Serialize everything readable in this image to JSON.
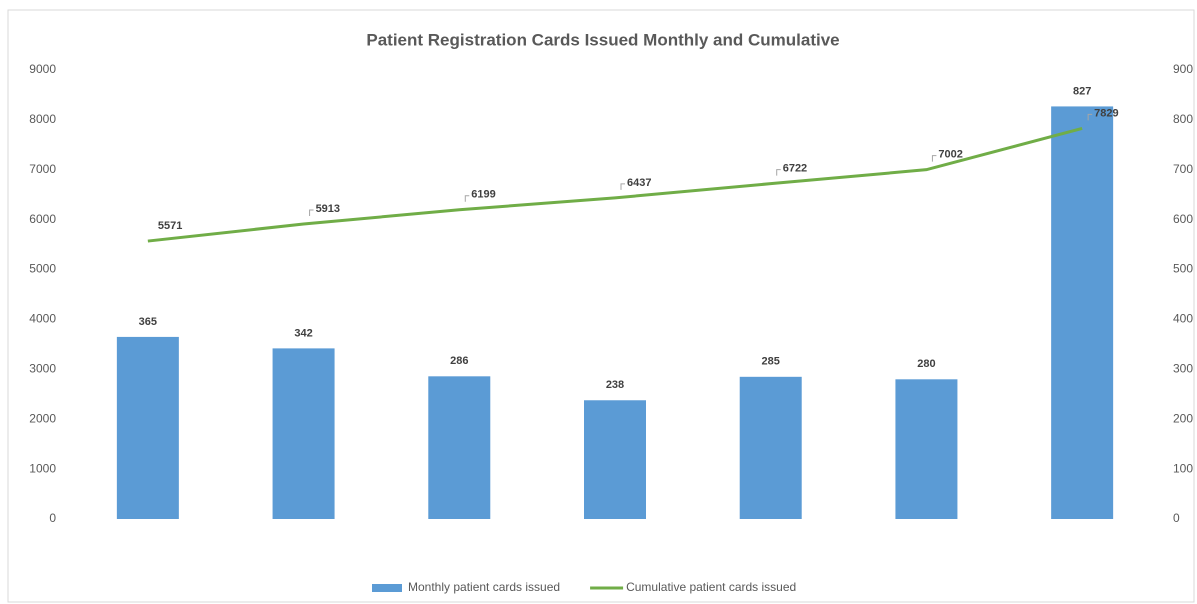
{
  "chart_data": {
    "type": "combo",
    "title": "Patient Registration Cards Issued Monthly and Cumulative",
    "categories": [
      null,
      null,
      null,
      null,
      null,
      null,
      null
    ],
    "series": [
      {
        "name": "Monthly patient cards issued",
        "type": "bar",
        "color": "#5b9bd5",
        "axis": "y2",
        "values": [
          365,
          342,
          286,
          238,
          285,
          280,
          827
        ]
      },
      {
        "name": "Cumulative patient cards issued",
        "type": "line",
        "color": "#70ad47",
        "values": [
          5571,
          5913,
          6199,
          6437,
          6722,
          7002,
          7829
        ]
      }
    ],
    "ylim": [
      0,
      9000
    ],
    "yticks": [
      0,
      1000,
      2000,
      3000,
      4000,
      5000,
      6000,
      7000,
      8000,
      9000
    ],
    "y2lim": [
      0,
      900
    ],
    "y2ticks": [
      0,
      100,
      200,
      300,
      400,
      500,
      600,
      700,
      800,
      900
    ],
    "legend": "bottom"
  }
}
